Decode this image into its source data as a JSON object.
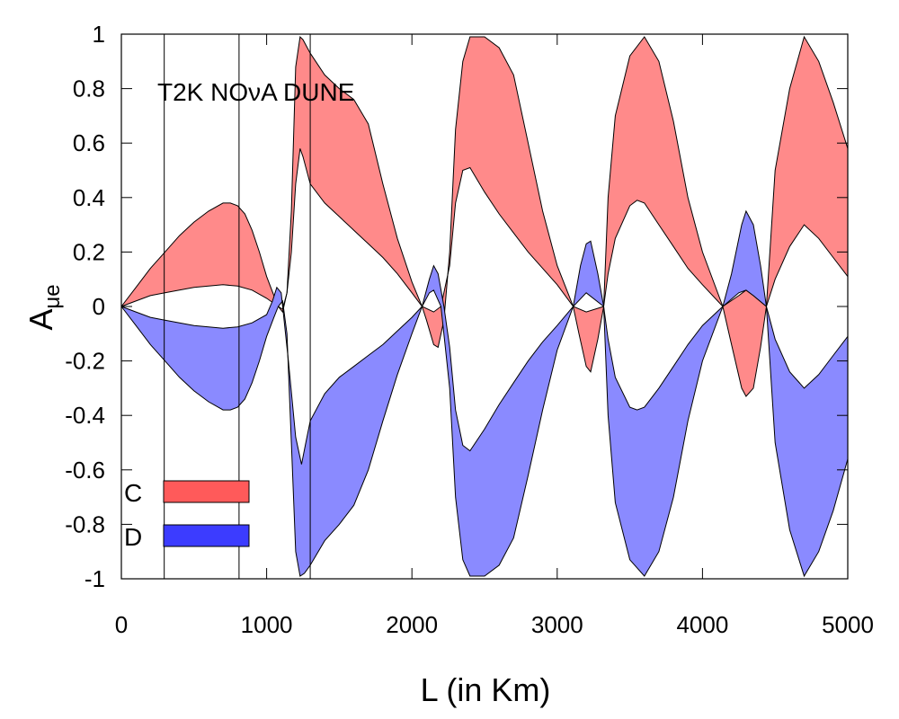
{
  "chart_data": {
    "type": "area",
    "title": "",
    "xlabel": "L (in Km)",
    "ylabel": "A",
    "ylabel_subscript": "μe",
    "xlim": [
      0,
      5000
    ],
    "ylim": [
      -1,
      1
    ],
    "xticks": [
      0,
      1000,
      2000,
      3000,
      4000,
      5000
    ],
    "yticks": [
      -1,
      -0.8,
      -0.6,
      -0.4,
      -0.2,
      0,
      0.2,
      0.4,
      0.6,
      0.8,
      1
    ],
    "xtick_labels": [
      "0",
      "1000",
      "2000",
      "3000",
      "4000",
      "5000"
    ],
    "ytick_labels": [
      "-1",
      "-0.8",
      "-0.6",
      "-0.4",
      "-0.2",
      "0",
      "0.2",
      "0.4",
      "0.6",
      "0.8",
      "1"
    ],
    "annotation": "T2K NOνA DUNE",
    "vertical_lines": [
      295,
      810,
      1300
    ],
    "grid": false,
    "legend_position": "bottom-left",
    "series": [
      {
        "name": "C",
        "color": "#ff5a5a",
        "fill": "#ff8a8a",
        "upper": [
          [
            0,
            0
          ],
          [
            100,
            0.07
          ],
          [
            200,
            0.14
          ],
          [
            300,
            0.2
          ],
          [
            400,
            0.26
          ],
          [
            500,
            0.31
          ],
          [
            600,
            0.35
          ],
          [
            700,
            0.38
          ],
          [
            750,
            0.38
          ],
          [
            800,
            0.37
          ],
          [
            850,
            0.34
          ],
          [
            900,
            0.28
          ],
          [
            950,
            0.2
          ],
          [
            1000,
            0.11
          ],
          [
            1050,
            0.04
          ],
          [
            1080,
            0.0
          ],
          [
            1110,
            -0.02
          ],
          [
            1140,
            0.05
          ],
          [
            1170,
            0.35
          ],
          [
            1200,
            0.88
          ],
          [
            1230,
            0.99
          ],
          [
            1250,
            0.98
          ],
          [
            1300,
            0.93
          ],
          [
            1400,
            0.85
          ],
          [
            1500,
            0.8
          ],
          [
            1600,
            0.76
          ],
          [
            1700,
            0.67
          ],
          [
            1800,
            0.45
          ],
          [
            1900,
            0.25
          ],
          [
            2000,
            0.09
          ],
          [
            2070,
            0.0
          ],
          [
            2100,
            -0.05
          ],
          [
            2150,
            -0.14
          ],
          [
            2180,
            -0.15
          ],
          [
            2220,
            -0.05
          ],
          [
            2260,
            0.2
          ],
          [
            2300,
            0.65
          ],
          [
            2350,
            0.9
          ],
          [
            2400,
            0.99
          ],
          [
            2500,
            0.99
          ],
          [
            2600,
            0.95
          ],
          [
            2700,
            0.85
          ],
          [
            2800,
            0.6
          ],
          [
            2900,
            0.35
          ],
          [
            3000,
            0.15
          ],
          [
            3110,
            0.0
          ],
          [
            3150,
            -0.1
          ],
          [
            3200,
            -0.22
          ],
          [
            3230,
            -0.24
          ],
          [
            3280,
            -0.12
          ],
          [
            3320,
            0.0
          ],
          [
            3350,
            0.4
          ],
          [
            3400,
            0.7
          ],
          [
            3500,
            0.92
          ],
          [
            3600,
            0.99
          ],
          [
            3700,
            0.9
          ],
          [
            3800,
            0.68
          ],
          [
            3900,
            0.4
          ],
          [
            4000,
            0.2
          ],
          [
            4140,
            0.0
          ],
          [
            4200,
            -0.14
          ],
          [
            4270,
            -0.3
          ],
          [
            4300,
            -0.33
          ],
          [
            4350,
            -0.3
          ],
          [
            4400,
            -0.15
          ],
          [
            4440,
            0.0
          ],
          [
            4500,
            0.5
          ],
          [
            4600,
            0.8
          ],
          [
            4700,
            0.99
          ],
          [
            4800,
            0.9
          ],
          [
            4900,
            0.75
          ],
          [
            5000,
            0.58
          ]
        ],
        "lower": [
          [
            0,
            0
          ],
          [
            100,
            0.02
          ],
          [
            200,
            0.04
          ],
          [
            300,
            0.05
          ],
          [
            400,
            0.06
          ],
          [
            500,
            0.07
          ],
          [
            600,
            0.075
          ],
          [
            700,
            0.08
          ],
          [
            800,
            0.075
          ],
          [
            900,
            0.06
          ],
          [
            1000,
            0.03
          ],
          [
            1080,
            0.0
          ],
          [
            1110,
            -0.01
          ],
          [
            1140,
            0.05
          ],
          [
            1170,
            0.2
          ],
          [
            1200,
            0.45
          ],
          [
            1230,
            0.58
          ],
          [
            1250,
            0.55
          ],
          [
            1300,
            0.45
          ],
          [
            1400,
            0.38
          ],
          [
            1500,
            0.33
          ],
          [
            1600,
            0.28
          ],
          [
            1700,
            0.23
          ],
          [
            1800,
            0.18
          ],
          [
            1900,
            0.12
          ],
          [
            2000,
            0.05
          ],
          [
            2070,
            0.0
          ],
          [
            2150,
            -0.02
          ],
          [
            2200,
            0.0
          ],
          [
            2260,
            0.15
          ],
          [
            2300,
            0.38
          ],
          [
            2350,
            0.5
          ],
          [
            2400,
            0.51
          ],
          [
            2500,
            0.42
          ],
          [
            2600,
            0.34
          ],
          [
            2700,
            0.27
          ],
          [
            2800,
            0.2
          ],
          [
            2900,
            0.14
          ],
          [
            3000,
            0.08
          ],
          [
            3110,
            0.0
          ],
          [
            3200,
            -0.02
          ],
          [
            3320,
            0.0
          ],
          [
            3350,
            0.12
          ],
          [
            3400,
            0.25
          ],
          [
            3500,
            0.37
          ],
          [
            3550,
            0.39
          ],
          [
            3600,
            0.38
          ],
          [
            3700,
            0.3
          ],
          [
            3800,
            0.22
          ],
          [
            3900,
            0.14
          ],
          [
            4000,
            0.08
          ],
          [
            4140,
            0.0
          ],
          [
            4250,
            0.04
          ],
          [
            4300,
            0.06
          ],
          [
            4350,
            0.04
          ],
          [
            4440,
            0.0
          ],
          [
            4500,
            0.1
          ],
          [
            4600,
            0.22
          ],
          [
            4700,
            0.3
          ],
          [
            4800,
            0.25
          ],
          [
            4900,
            0.18
          ],
          [
            5000,
            0.11
          ]
        ]
      },
      {
        "name": "D",
        "color": "#3c3cff",
        "fill": "#8a8aff",
        "upper": [
          [
            0,
            0
          ],
          [
            100,
            -0.02
          ],
          [
            200,
            -0.04
          ],
          [
            300,
            -0.05
          ],
          [
            400,
            -0.06
          ],
          [
            500,
            -0.07
          ],
          [
            600,
            -0.075
          ],
          [
            700,
            -0.08
          ],
          [
            800,
            -0.075
          ],
          [
            900,
            -0.06
          ],
          [
            1000,
            -0.03
          ],
          [
            1040,
            0.02
          ],
          [
            1070,
            0.07
          ],
          [
            1100,
            0.05
          ],
          [
            1120,
            -0.05
          ],
          [
            1150,
            -0.2
          ],
          [
            1200,
            -0.48
          ],
          [
            1240,
            -0.58
          ],
          [
            1270,
            -0.5
          ],
          [
            1300,
            -0.42
          ],
          [
            1400,
            -0.32
          ],
          [
            1500,
            -0.26
          ],
          [
            1600,
            -0.22
          ],
          [
            1700,
            -0.18
          ],
          [
            1800,
            -0.14
          ],
          [
            1900,
            -0.09
          ],
          [
            2000,
            -0.04
          ],
          [
            2070,
            0.0
          ],
          [
            2120,
            0.1
          ],
          [
            2150,
            0.15
          ],
          [
            2180,
            0.12
          ],
          [
            2220,
            0.0
          ],
          [
            2260,
            -0.15
          ],
          [
            2300,
            -0.38
          ],
          [
            2350,
            -0.51
          ],
          [
            2400,
            -0.53
          ],
          [
            2500,
            -0.45
          ],
          [
            2600,
            -0.36
          ],
          [
            2700,
            -0.28
          ],
          [
            2800,
            -0.2
          ],
          [
            2900,
            -0.13
          ],
          [
            3000,
            -0.07
          ],
          [
            3110,
            0.0
          ],
          [
            3160,
            0.15
          ],
          [
            3200,
            0.23
          ],
          [
            3230,
            0.24
          ],
          [
            3280,
            0.12
          ],
          [
            3320,
            0.0
          ],
          [
            3350,
            -0.12
          ],
          [
            3400,
            -0.26
          ],
          [
            3500,
            -0.37
          ],
          [
            3550,
            -0.38
          ],
          [
            3600,
            -0.37
          ],
          [
            3700,
            -0.3
          ],
          [
            3800,
            -0.22
          ],
          [
            3900,
            -0.14
          ],
          [
            4000,
            -0.07
          ],
          [
            4140,
            0.0
          ],
          [
            4200,
            0.12
          ],
          [
            4270,
            0.3
          ],
          [
            4300,
            0.35
          ],
          [
            4350,
            0.3
          ],
          [
            4400,
            0.15
          ],
          [
            4440,
            0.0
          ],
          [
            4500,
            -0.12
          ],
          [
            4600,
            -0.24
          ],
          [
            4700,
            -0.3
          ],
          [
            4800,
            -0.25
          ],
          [
            4900,
            -0.18
          ],
          [
            5000,
            -0.11
          ]
        ],
        "lower": [
          [
            0,
            0
          ],
          [
            100,
            -0.07
          ],
          [
            200,
            -0.14
          ],
          [
            300,
            -0.2
          ],
          [
            400,
            -0.26
          ],
          [
            500,
            -0.31
          ],
          [
            600,
            -0.35
          ],
          [
            700,
            -0.38
          ],
          [
            750,
            -0.38
          ],
          [
            800,
            -0.37
          ],
          [
            850,
            -0.34
          ],
          [
            900,
            -0.28
          ],
          [
            950,
            -0.2
          ],
          [
            1000,
            -0.11
          ],
          [
            1050,
            -0.04
          ],
          [
            1080,
            0.0
          ],
          [
            1110,
            0.02
          ],
          [
            1140,
            -0.1
          ],
          [
            1170,
            -0.5
          ],
          [
            1200,
            -0.9
          ],
          [
            1230,
            -0.99
          ],
          [
            1260,
            -0.98
          ],
          [
            1300,
            -0.95
          ],
          [
            1400,
            -0.86
          ],
          [
            1500,
            -0.8
          ],
          [
            1600,
            -0.73
          ],
          [
            1700,
            -0.6
          ],
          [
            1800,
            -0.42
          ],
          [
            1900,
            -0.25
          ],
          [
            2000,
            -0.1
          ],
          [
            2070,
            0.0
          ],
          [
            2120,
            0.05
          ],
          [
            2150,
            0.06
          ],
          [
            2200,
            0.0
          ],
          [
            2260,
            -0.3
          ],
          [
            2300,
            -0.7
          ],
          [
            2350,
            -0.93
          ],
          [
            2400,
            -0.99
          ],
          [
            2500,
            -0.99
          ],
          [
            2600,
            -0.95
          ],
          [
            2700,
            -0.85
          ],
          [
            2800,
            -0.62
          ],
          [
            2900,
            -0.38
          ],
          [
            3000,
            -0.16
          ],
          [
            3110,
            0.0
          ],
          [
            3200,
            0.05
          ],
          [
            3320,
            0.0
          ],
          [
            3350,
            -0.4
          ],
          [
            3400,
            -0.72
          ],
          [
            3500,
            -0.93
          ],
          [
            3600,
            -0.99
          ],
          [
            3700,
            -0.9
          ],
          [
            3800,
            -0.7
          ],
          [
            3900,
            -0.42
          ],
          [
            4000,
            -0.2
          ],
          [
            4140,
            0.0
          ],
          [
            4250,
            0.05
          ],
          [
            4300,
            0.06
          ],
          [
            4350,
            0.04
          ],
          [
            4440,
            0.0
          ],
          [
            4500,
            -0.5
          ],
          [
            4600,
            -0.82
          ],
          [
            4700,
            -0.99
          ],
          [
            4800,
            -0.9
          ],
          [
            4900,
            -0.75
          ],
          [
            5000,
            -0.56
          ]
        ]
      }
    ]
  }
}
